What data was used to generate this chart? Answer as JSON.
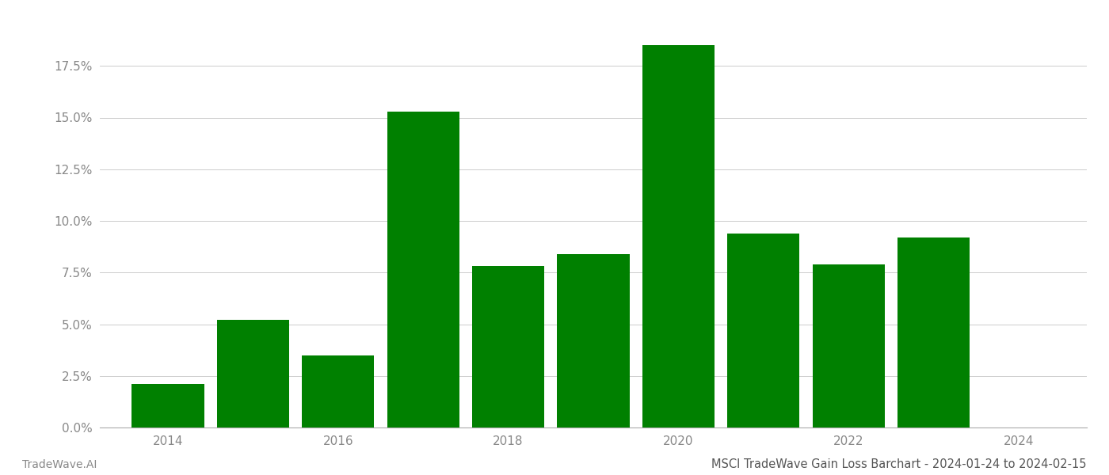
{
  "years": [
    2014,
    2015,
    2016,
    2017,
    2018,
    2019,
    2020,
    2021,
    2022,
    2023
  ],
  "values": [
    0.021,
    0.052,
    0.035,
    0.153,
    0.078,
    0.084,
    0.185,
    0.094,
    0.079,
    0.092
  ],
  "bar_color": "#008000",
  "title": "MSCI TradeWave Gain Loss Barchart - 2024-01-24 to 2024-02-15",
  "footer_left": "TradeWave.AI",
  "ylim_min": 0.0,
  "ylim_max": 0.2,
  "yticks": [
    0.0,
    0.025,
    0.05,
    0.075,
    0.1,
    0.125,
    0.15,
    0.175
  ],
  "ytick_labels": [
    "0.0%",
    "2.5%",
    "5.0%",
    "7.5%",
    "10.0%",
    "12.5%",
    "15.0%",
    "17.5%"
  ],
  "xticks": [
    2014,
    2016,
    2018,
    2020,
    2022,
    2024
  ],
  "grid_color": "#cccccc",
  "background_color": "#ffffff",
  "bar_width": 0.85,
  "spine_color": "#aaaaaa",
  "tick_label_color": "#888888",
  "footer_color": "#888888",
  "title_color": "#555555",
  "title_fontsize": 10.5,
  "footer_fontsize": 10,
  "tick_fontsize": 11,
  "xlim_min": 2013.2,
  "xlim_max": 2024.8
}
